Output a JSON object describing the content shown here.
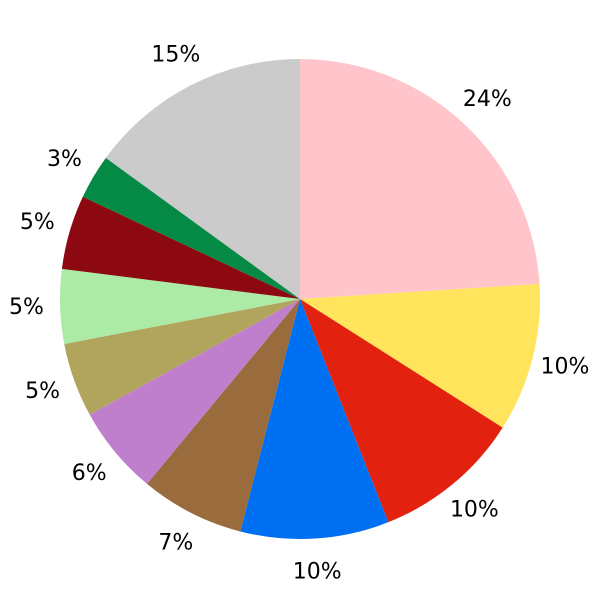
{
  "figure": {
    "background_color": "#ffffff",
    "label_color": "#000000"
  },
  "chart_data": {
    "type": "pie",
    "title": "",
    "start_angle_deg": 0,
    "direction": "clockwise-from-top",
    "center": [
      300,
      299
    ],
    "radius": 240,
    "label_distance": 1.14,
    "legend": "none",
    "slices": [
      {
        "label": "24%",
        "value": 24,
        "color": "#FFC5CA"
      },
      {
        "label": "10%",
        "value": 10,
        "color": "#FFE45C"
      },
      {
        "label": "10%",
        "value": 10,
        "color": "#E2210F"
      },
      {
        "label": "10%",
        "value": 10,
        "color": "#0070F2"
      },
      {
        "label": "7%",
        "value": 7,
        "color": "#9A6B3C"
      },
      {
        "label": "6%",
        "value": 6,
        "color": "#C07FCC"
      },
      {
        "label": "5%",
        "value": 5,
        "color": "#B1A45C"
      },
      {
        "label": "5%",
        "value": 5,
        "color": "#ACEBA5"
      },
      {
        "label": "5%",
        "value": 5,
        "color": "#8D0911"
      },
      {
        "label": "3%",
        "value": 3,
        "color": "#048A44"
      },
      {
        "label": "15%",
        "value": 15,
        "color": "#CBCBCB"
      }
    ]
  }
}
